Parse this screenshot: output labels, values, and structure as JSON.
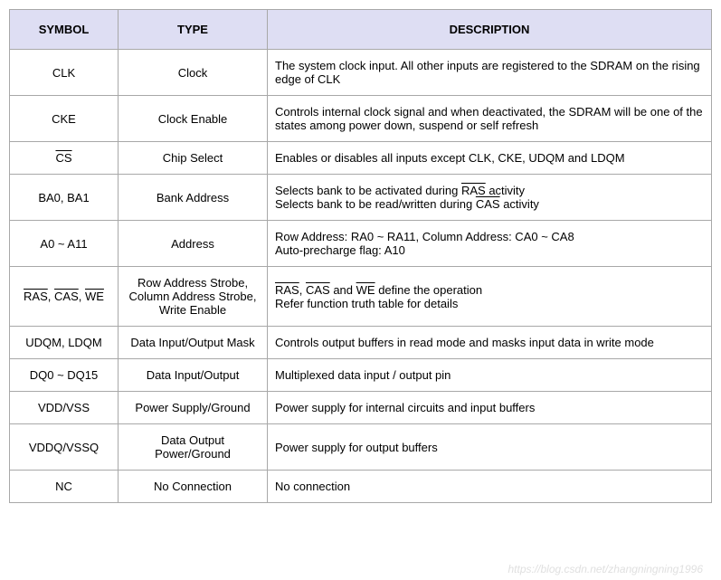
{
  "table": {
    "header_bg": "#dedef3",
    "border_color": "#a8a8a8",
    "font_family": "Tahoma, Verdana, Arial, sans-serif",
    "font_size": 13,
    "columns": [
      {
        "label": "SYMBOL",
        "width": 120,
        "align": "center"
      },
      {
        "label": "TYPE",
        "width": 165,
        "align": "center"
      },
      {
        "label": "DESCRIPTION",
        "width": "auto",
        "align": "left"
      }
    ],
    "rows": [
      {
        "symbol": {
          "parts": [
            {
              "text": "CLK"
            }
          ]
        },
        "type": "Clock",
        "description": {
          "lines": [
            [
              {
                "text": "The system clock input. All other inputs are registered to the SDRAM on the rising edge of CLK"
              }
            ]
          ]
        }
      },
      {
        "symbol": {
          "parts": [
            {
              "text": "CKE"
            }
          ]
        },
        "type": "Clock Enable",
        "description": {
          "lines": [
            [
              {
                "text": "Controls internal clock signal and when deactivated, the SDRAM will be one of the states among power down, suspend or self refresh"
              }
            ]
          ]
        }
      },
      {
        "symbol": {
          "parts": [
            {
              "text": "CS",
              "overline": true
            }
          ]
        },
        "type": "Chip Select",
        "description": {
          "lines": [
            [
              {
                "text": "Enables or disables all inputs except CLK, CKE, UDQM and LDQM"
              }
            ]
          ]
        }
      },
      {
        "symbol": {
          "parts": [
            {
              "text": "BA0, BA1"
            }
          ]
        },
        "type": "Bank Address",
        "description": {
          "lines": [
            [
              {
                "text": "Selects bank to be activated during "
              },
              {
                "text": "RAS",
                "overline": true
              },
              {
                "text": " activity"
              }
            ],
            [
              {
                "text": "Selects bank to be read/written during "
              },
              {
                "text": "CAS",
                "overline": true
              },
              {
                "text": " activity"
              }
            ]
          ]
        }
      },
      {
        "symbol": {
          "parts": [
            {
              "text": "A0 ~ A11"
            }
          ]
        },
        "type": "Address",
        "description": {
          "lines": [
            [
              {
                "text": "Row Address: RA0 ~ RA11, Column Address: CA0 ~ CA8"
              }
            ],
            [
              {
                "text": "Auto-precharge flag: A10"
              }
            ]
          ]
        }
      },
      {
        "symbol": {
          "parts": [
            {
              "text": "RAS",
              "overline": true
            },
            {
              "text": ", "
            },
            {
              "text": "CAS",
              "overline": true
            },
            {
              "text": ", "
            },
            {
              "text": "WE",
              "overline": true
            }
          ]
        },
        "type": "Row Address Strobe, Column Address Strobe, Write Enable",
        "description": {
          "lines": [
            [
              {
                "text": "RAS",
                "overline": true
              },
              {
                "text": ", "
              },
              {
                "text": "CAS",
                "overline": true
              },
              {
                "text": " and "
              },
              {
                "text": "WE",
                "overline": true
              },
              {
                "text": " define the operation"
              }
            ],
            [
              {
                "text": "Refer function truth table for details"
              }
            ]
          ]
        }
      },
      {
        "symbol": {
          "parts": [
            {
              "text": "UDQM, LDQM"
            }
          ]
        },
        "type": "Data Input/Output Mask",
        "description": {
          "lines": [
            [
              {
                "text": "Controls output buffers in read mode and masks input data in write mode"
              }
            ]
          ]
        }
      },
      {
        "symbol": {
          "parts": [
            {
              "text": "DQ0 ~ DQ15"
            }
          ]
        },
        "type": "Data Input/Output",
        "description": {
          "lines": [
            [
              {
                "text": "Multiplexed data input / output pin"
              }
            ]
          ]
        }
      },
      {
        "symbol": {
          "parts": [
            {
              "text": "VDD/VSS"
            }
          ]
        },
        "type": "Power Supply/Ground",
        "description": {
          "lines": [
            [
              {
                "text": "Power supply for internal circuits and input buffers"
              }
            ]
          ]
        }
      },
      {
        "symbol": {
          "parts": [
            {
              "text": "VDDQ/VSSQ"
            }
          ]
        },
        "type": "Data Output Power/Ground",
        "description": {
          "lines": [
            [
              {
                "text": "Power supply for output buffers"
              }
            ]
          ]
        }
      },
      {
        "symbol": {
          "parts": [
            {
              "text": "NC"
            }
          ]
        },
        "type": "No Connection",
        "description": {
          "lines": [
            [
              {
                "text": "No connection"
              }
            ]
          ]
        }
      }
    ]
  },
  "watermark": "https://blog.csdn.net/zhangningning1996"
}
